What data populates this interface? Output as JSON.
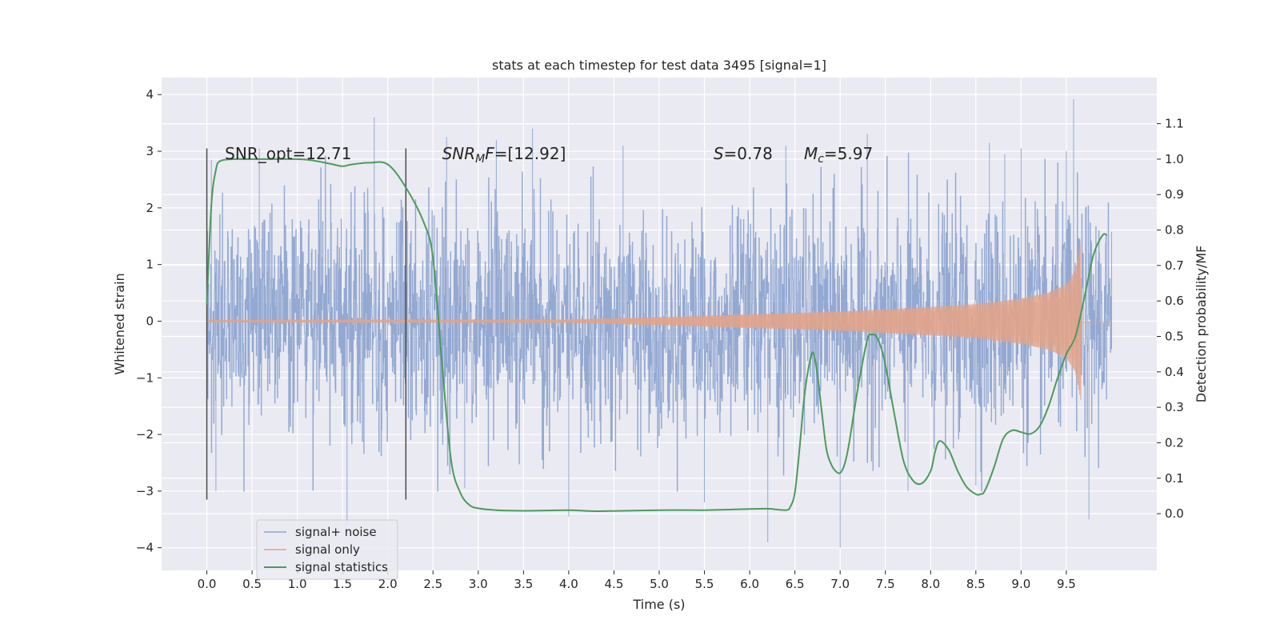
{
  "chart_data": {
    "type": "line",
    "title": "stats at each timestep for test data 3495 [signal=1]",
    "xlabel": "Time (s)",
    "ylabel": "Whitened strain",
    "y2label": "Detection probability/MF",
    "xlim": [
      -0.5,
      10.5
    ],
    "ylim": [
      -4.4,
      4.3
    ],
    "y2lim": [
      -0.16,
      1.23
    ],
    "xticks": [
      "0.0",
      "0.5",
      "1.0",
      "1.5",
      "2.0",
      "2.5",
      "3.0",
      "3.5",
      "4.0",
      "4.5",
      "5.0",
      "5.5",
      "6.0",
      "6.5",
      "7.0",
      "7.5",
      "8.0",
      "8.5",
      "9.0",
      "9.5"
    ],
    "xtick_values": [
      0,
      0.5,
      1,
      1.5,
      2,
      2.5,
      3,
      3.5,
      4,
      4.5,
      5,
      5.5,
      6,
      6.5,
      7,
      7.5,
      8,
      8.5,
      9,
      9.5
    ],
    "yticks": [
      "−4",
      "−3",
      "−2",
      "−1",
      "0",
      "1",
      "2",
      "3",
      "4"
    ],
    "ytick_values": [
      -4,
      -3,
      -2,
      -1,
      0,
      1,
      2,
      3,
      4
    ],
    "y2ticks": [
      "0.0",
      "0.1",
      "0.2",
      "0.3",
      "0.4",
      "0.5",
      "0.6",
      "0.7",
      "0.8",
      "0.9",
      "1.0",
      "1.1"
    ],
    "y2tick_values": [
      0,
      0.1,
      0.2,
      0.3,
      0.4,
      0.5,
      0.6,
      0.7,
      0.8,
      0.9,
      1.0,
      1.1
    ],
    "grid": true,
    "legend_position": "lower-left",
    "annotations": [
      {
        "text": "SNR_opt=12.71",
        "x": 0.2
      },
      {
        "prefix": "SNR",
        "sub": "M",
        "suffix": "F=[12.92]",
        "x": 2.6
      },
      {
        "prefix": "S",
        "sub": "",
        "suffix": "=0.78",
        "x": 5.6
      },
      {
        "prefix": "M",
        "sub": "c",
        "suffix": "=5.97",
        "x": 6.6
      }
    ],
    "annotation_y2": 1.0,
    "window_markers": {
      "x": [
        0.0,
        2.2
      ],
      "y": [
        -3.15,
        3.05
      ]
    },
    "series": [
      {
        "name": "signal+ noise",
        "color": "#8fa5d0",
        "kind": "noise",
        "x_range": [
          0.0,
          10.0
        ],
        "envelope_std": 1.0,
        "peaks": [
          [
            0.05,
            2.85
          ],
          [
            0.58,
            3.05
          ],
          [
            1.85,
            3.6
          ],
          [
            2.65,
            3.25
          ],
          [
            3.2,
            3.2
          ],
          [
            3.6,
            3.4
          ],
          [
            4.6,
            3.1
          ],
          [
            6.4,
            3.1
          ],
          [
            7.3,
            3.3
          ],
          [
            8.65,
            3.15
          ],
          [
            9.0,
            3.05
          ],
          [
            9.5,
            3.0
          ],
          [
            9.58,
            3.92
          ],
          [
            9.62,
            2.5
          ],
          [
            8.82,
            2.95
          ],
          [
            1.55,
            -3.6
          ],
          [
            4.0,
            -3.45
          ],
          [
            6.2,
            -3.9
          ],
          [
            7.0,
            -4.0
          ],
          [
            5.5,
            -3.2
          ],
          [
            7.75,
            -3.0
          ],
          [
            8.5,
            -2.9
          ],
          [
            9.75,
            -3.5
          ],
          [
            2.85,
            -2.95
          ],
          [
            0.1,
            -3.0
          ]
        ]
      },
      {
        "name": "signal only",
        "color": "#e1a38a",
        "kind": "chirp",
        "x_range": [
          0.0,
          9.67
        ],
        "envelope": [
          [
            0,
            0.02
          ],
          [
            4.0,
            0.03
          ],
          [
            5.0,
            0.07
          ],
          [
            6.0,
            0.12
          ],
          [
            7.0,
            0.17
          ],
          [
            8.0,
            0.25
          ],
          [
            8.5,
            0.3
          ],
          [
            9.0,
            0.4
          ],
          [
            9.3,
            0.5
          ],
          [
            9.5,
            0.65
          ],
          [
            9.6,
            0.9
          ],
          [
            9.66,
            1.4
          ],
          [
            9.67,
            0.02
          ]
        ]
      },
      {
        "name": "signal statistics",
        "color": "#4c9a5c",
        "kind": "line",
        "axis": "right",
        "x": [
          0.0,
          0.05,
          0.1,
          0.15,
          0.3,
          0.5,
          1.0,
          1.2,
          1.4,
          1.5,
          1.6,
          1.8,
          2.0,
          2.2,
          2.4,
          2.5,
          2.6,
          2.7,
          2.8,
          2.9,
          3.0,
          3.2,
          3.5,
          4.0,
          4.3,
          5.0,
          5.5,
          6.0,
          6.2,
          6.4,
          6.45,
          6.5,
          6.55,
          6.6,
          6.65,
          6.7,
          6.75,
          6.8,
          6.85,
          6.9,
          6.95,
          7.0,
          7.05,
          7.1,
          7.2,
          7.3,
          7.35,
          7.4,
          7.45,
          7.5,
          7.6,
          7.7,
          7.8,
          7.9,
          8.0,
          8.05,
          8.1,
          8.2,
          8.3,
          8.4,
          8.5,
          8.55,
          8.6,
          8.7,
          8.8,
          8.9,
          9.0,
          9.1,
          9.2,
          9.3,
          9.4,
          9.5,
          9.6,
          9.7,
          9.8,
          9.9,
          9.95
        ],
        "y": [
          0.59,
          0.87,
          0.97,
          0.995,
          1.0,
          1.0,
          1.0,
          0.995,
          0.985,
          0.98,
          0.985,
          0.99,
          0.985,
          0.92,
          0.82,
          0.72,
          0.42,
          0.15,
          0.06,
          0.025,
          0.015,
          0.01,
          0.008,
          0.01,
          0.007,
          0.01,
          0.01,
          0.013,
          0.014,
          0.01,
          0.02,
          0.06,
          0.18,
          0.32,
          0.41,
          0.455,
          0.39,
          0.28,
          0.18,
          0.14,
          0.12,
          0.115,
          0.14,
          0.2,
          0.36,
          0.49,
          0.505,
          0.5,
          0.47,
          0.42,
          0.28,
          0.15,
          0.095,
          0.085,
          0.12,
          0.175,
          0.205,
          0.18,
          0.12,
          0.075,
          0.055,
          0.055,
          0.065,
          0.13,
          0.21,
          0.235,
          0.23,
          0.225,
          0.245,
          0.3,
          0.38,
          0.45,
          0.5,
          0.61,
          0.73,
          0.785,
          0.785
        ]
      }
    ]
  }
}
